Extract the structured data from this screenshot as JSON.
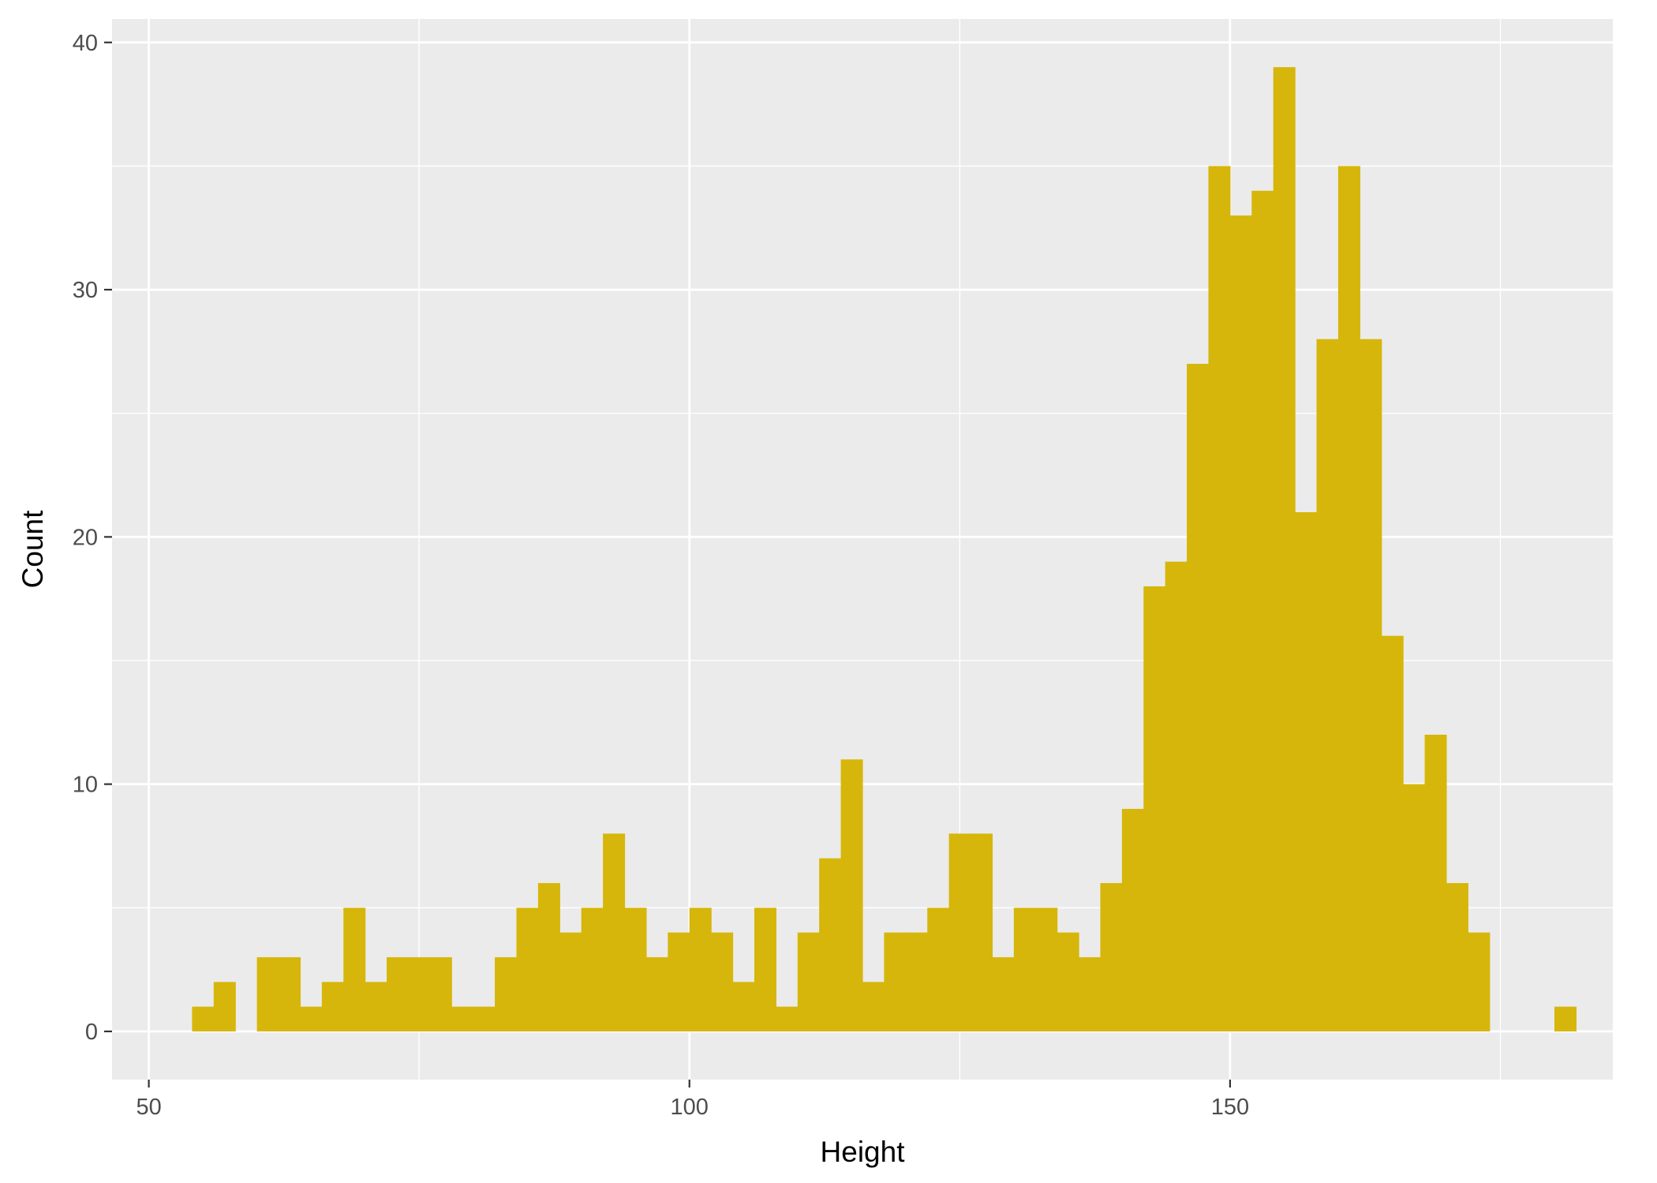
{
  "chart_data": {
    "type": "bar",
    "xlabel": "Height",
    "ylabel": "Count",
    "xlim": [
      46.6,
      185.4
    ],
    "ylim": [
      -1.95,
      40.95
    ],
    "x_ticks": [
      50,
      100,
      150
    ],
    "y_ticks": [
      0,
      10,
      20,
      30,
      40
    ],
    "bin_width": 2,
    "bin_starts": [
      54,
      56,
      58,
      60,
      62,
      64,
      66,
      68,
      70,
      72,
      74,
      76,
      78,
      80,
      82,
      84,
      86,
      88,
      90,
      92,
      94,
      96,
      98,
      100,
      102,
      104,
      106,
      108,
      110,
      112,
      114,
      116,
      118,
      120,
      122,
      124,
      126,
      128,
      130,
      132,
      134,
      136,
      138,
      140,
      142,
      144,
      146,
      148,
      150,
      152,
      154,
      156,
      158,
      160,
      162,
      164,
      166,
      168,
      170,
      172,
      174,
      176,
      178,
      180
    ],
    "values": [
      1,
      2,
      0,
      3,
      3,
      1,
      2,
      5,
      2,
      3,
      3,
      3,
      1,
      1,
      3,
      5,
      6,
      4,
      5,
      8,
      5,
      3,
      4,
      5,
      4,
      2,
      5,
      1,
      4,
      7,
      11,
      2,
      4,
      4,
      5,
      8,
      8,
      3,
      5,
      5,
      4,
      3,
      6,
      9,
      18,
      19,
      27,
      35,
      33,
      34,
      39,
      21,
      28,
      35,
      28,
      16,
      10,
      12,
      6,
      4,
      0,
      0,
      0,
      1
    ],
    "grid": true,
    "colors": {
      "bar": "#D6B60A",
      "panel": "#EBEBEB",
      "grid": "#FFFFFF",
      "tick": "#333333"
    }
  }
}
